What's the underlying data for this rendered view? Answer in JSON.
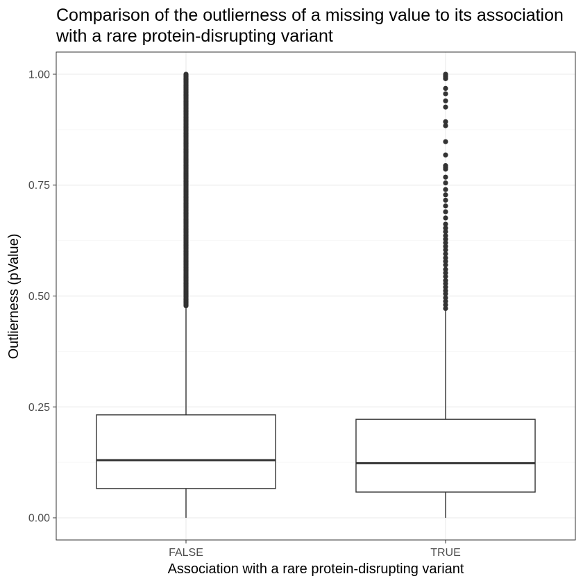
{
  "chart_data": {
    "type": "boxplot",
    "title_lines": [
      "Comparison of the outlierness of a missing value to its association",
      "with a rare protein-disrupting variant"
    ],
    "xlabel": "Association with a rare protein-disrupting variant",
    "ylabel": "Outlierness (pValue)",
    "ylim": [
      -0.05,
      1.05
    ],
    "y_ticks": [
      0.0,
      0.25,
      0.5,
      0.75,
      1.0
    ],
    "y_tick_labels": [
      "0.00",
      "0.25",
      "0.50",
      "0.75",
      "1.00"
    ],
    "y_minor_ticks": [
      0.125,
      0.375,
      0.625,
      0.875
    ],
    "grid": true,
    "categories": [
      "FALSE",
      "TRUE"
    ],
    "boxes": [
      {
        "category": "FALSE",
        "whisker_low": 0.0,
        "q1": 0.066,
        "median": 0.13,
        "q3": 0.232,
        "whisker_high": 0.478,
        "outlier_dense_range": [
          0.478,
          1.0
        ],
        "outliers": []
      },
      {
        "category": "TRUE",
        "whisker_low": 0.0,
        "q1": 0.058,
        "median": 0.123,
        "q3": 0.222,
        "whisker_high": 0.467,
        "outliers": [
          0.472,
          0.48,
          0.488,
          0.496,
          0.505,
          0.512,
          0.52,
          0.528,
          0.535,
          0.544,
          0.552,
          0.56,
          0.57,
          0.578,
          0.586,
          0.595,
          0.604,
          0.612,
          0.62,
          0.628,
          0.636,
          0.645,
          0.653,
          0.662,
          0.676,
          0.69,
          0.703,
          0.716,
          0.728,
          0.74,
          0.755,
          0.768,
          0.786,
          0.79,
          0.794,
          0.818,
          0.848,
          0.884,
          0.893,
          0.926,
          0.94,
          0.956,
          0.968,
          0.99,
          0.994,
          0.997,
          1.0
        ]
      }
    ],
    "colors": {
      "panel_border": "#333333",
      "grid_major": "#ebebeb",
      "grid_minor": "#f5f5f5",
      "box_stroke": "#333333",
      "point_fill": "#333333",
      "background": "#ffffff"
    }
  }
}
